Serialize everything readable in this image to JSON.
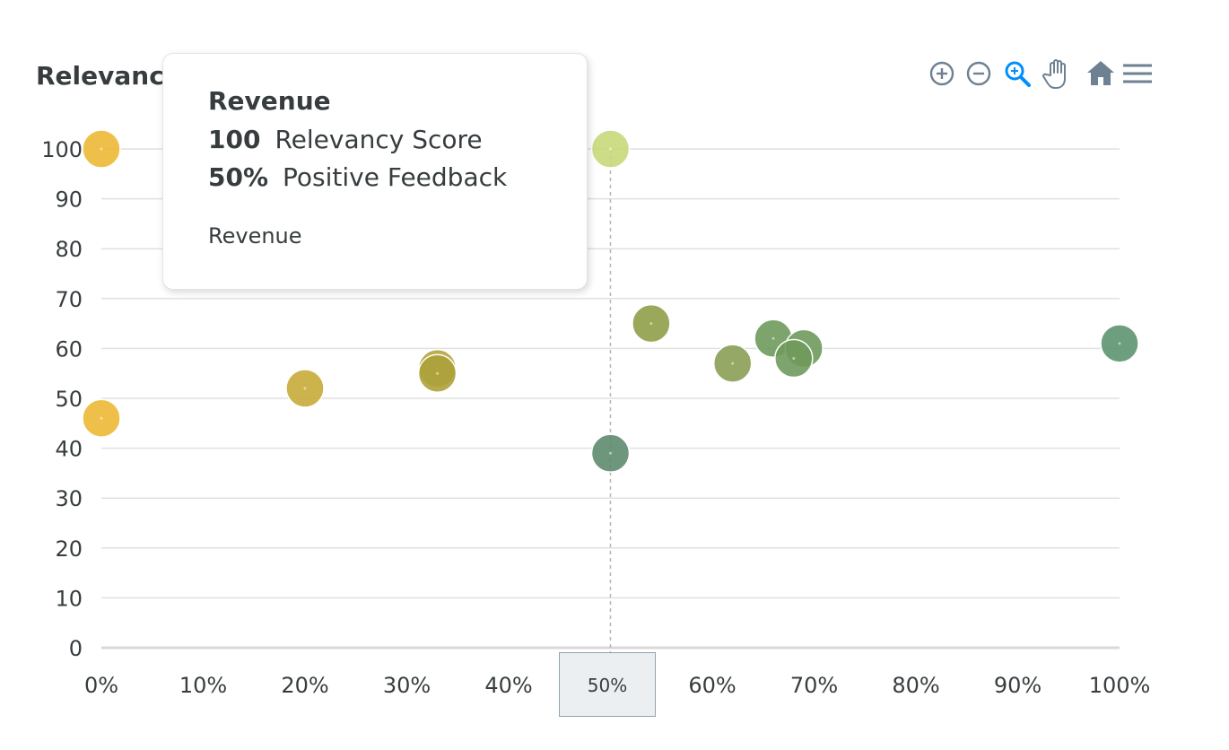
{
  "chart_data": {
    "type": "scatter",
    "title": "Relevancy Score",
    "xlabel": "",
    "ylabel": "",
    "xlim": [
      0,
      100
    ],
    "ylim": [
      0,
      100
    ],
    "x_ticks": [
      "0%",
      "10%",
      "20%",
      "30%",
      "40%",
      "50%",
      "60%",
      "70%",
      "80%",
      "90%",
      "100%"
    ],
    "y_ticks": [
      "0",
      "10",
      "20",
      "30",
      "40",
      "50",
      "60",
      "70",
      "80",
      "90",
      "100"
    ],
    "grid": true,
    "points": [
      {
        "x": 0,
        "y": 100,
        "color": "#edb935"
      },
      {
        "x": 0,
        "y": 46,
        "color": "#edb935"
      },
      {
        "x": 20,
        "y": 52,
        "color": "#c6ab38"
      },
      {
        "x": 33,
        "y": 56,
        "color": "#b4a53c"
      },
      {
        "x": 33,
        "y": 55,
        "color": "#ada13b"
      },
      {
        "x": 50,
        "y": 100,
        "color": "#c8d87a"
      },
      {
        "x": 50,
        "y": 39,
        "color": "#5e8b6e"
      },
      {
        "x": 54,
        "y": 65,
        "color": "#8e9f48"
      },
      {
        "x": 62,
        "y": 57,
        "color": "#8a9f55"
      },
      {
        "x": 66,
        "y": 62,
        "color": "#6f9a5c"
      },
      {
        "x": 69,
        "y": 60,
        "color": "#6f9a5c"
      },
      {
        "x": 68,
        "y": 58,
        "color": "#6f9a5c"
      },
      {
        "x": 100,
        "y": 61,
        "color": "#5d9470"
      }
    ],
    "highlight_x": 50
  },
  "tooltip": {
    "series": "Revenue",
    "y_value": "100",
    "y_label": "Relevancy Score",
    "x_value": "50%",
    "x_label": "Positive Feedback",
    "footer": "Revenue"
  },
  "x_crosshair_label": "50%",
  "toolbar": {
    "icons": [
      "zoom-in-icon",
      "zoom-out-icon",
      "selection-zoom-icon",
      "pan-hand-icon",
      "home-icon",
      "menu-icon"
    ],
    "icon_color": "#6e8192",
    "active_color": "#008ffb"
  }
}
